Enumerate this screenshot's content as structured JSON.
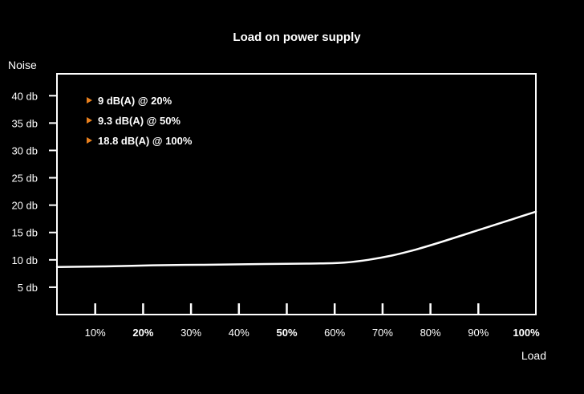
{
  "chart_data": {
    "type": "line",
    "title": "Load on power supply",
    "xlabel": "Load",
    "ylabel": "Noise",
    "x_ticks": [
      {
        "label": "10%",
        "value": 10,
        "bold": false
      },
      {
        "label": "20%",
        "value": 20,
        "bold": true
      },
      {
        "label": "30%",
        "value": 30,
        "bold": false
      },
      {
        "label": "40%",
        "value": 40,
        "bold": false
      },
      {
        "label": "50%",
        "value": 50,
        "bold": true
      },
      {
        "label": "60%",
        "value": 60,
        "bold": false
      },
      {
        "label": "70%",
        "value": 70,
        "bold": false
      },
      {
        "label": "80%",
        "value": 80,
        "bold": false
      },
      {
        "label": "90%",
        "value": 90,
        "bold": false
      },
      {
        "label": "100%",
        "value": 100,
        "bold": true
      }
    ],
    "y_ticks": [
      {
        "label": "5 db",
        "value": 5
      },
      {
        "label": "10 db",
        "value": 10
      },
      {
        "label": "15 db",
        "value": 15
      },
      {
        "label": "20 db",
        "value": 20
      },
      {
        "label": "25 db",
        "value": 25
      },
      {
        "label": "30 db",
        "value": 30
      },
      {
        "label": "35 db",
        "value": 35
      },
      {
        "label": "40 db",
        "value": 40
      }
    ],
    "xlim": [
      0,
      100
    ],
    "ylim": [
      0,
      44
    ],
    "grid": false,
    "series": [
      {
        "x": [
          0,
          10,
          20,
          30,
          40,
          50,
          55,
          60,
          65,
          70,
          75,
          80,
          85,
          90,
          95,
          100
        ],
        "y": [
          8.7,
          8.8,
          9.0,
          9.1,
          9.2,
          9.3,
          9.35,
          9.5,
          10.0,
          10.8,
          11.9,
          13.2,
          14.6,
          16.0,
          17.4,
          18.8
        ]
      }
    ],
    "annotations": [
      "9 dB(A) @ 20%",
      "9.3 dB(A) @ 50%",
      "18.8 dB(A) @ 100%"
    ],
    "colors": {
      "background": "#000000",
      "foreground": "#ffffff",
      "marker": "#e8801e"
    }
  }
}
